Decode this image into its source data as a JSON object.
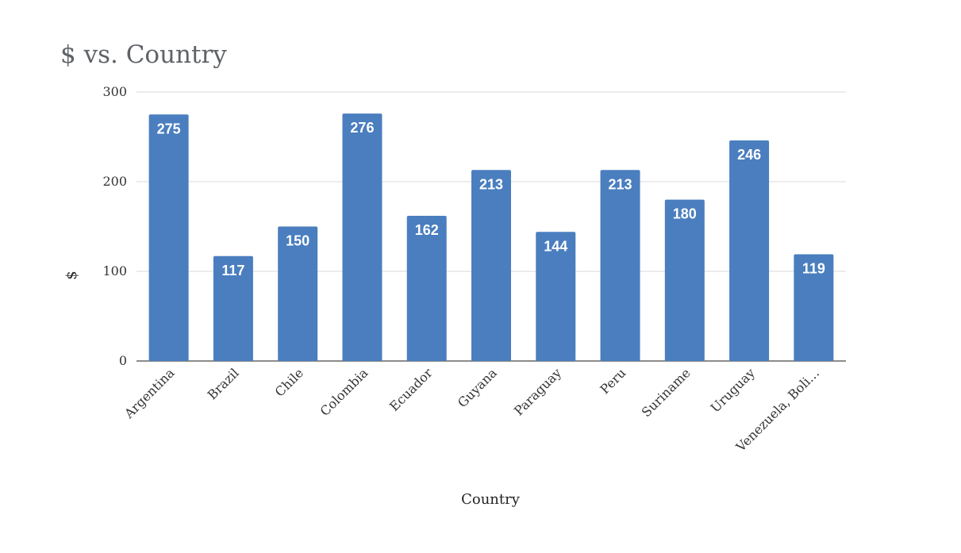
{
  "chart_data": {
    "type": "bar",
    "title": "$ vs. Country",
    "xlabel": "Country",
    "ylabel": "$",
    "categories": [
      "Argentina",
      "Brazil",
      "Chile",
      "Colombia",
      "Ecuador",
      "Guyana",
      "Paraguay",
      "Peru",
      "Suriname",
      "Uruguay",
      "Venezuela, Boli…"
    ],
    "series": [
      {
        "values": [
          275,
          117,
          150,
          276,
          162,
          213,
          144,
          213,
          180,
          246,
          119
        ]
      }
    ],
    "ylim": [
      0,
      300
    ],
    "yticks": [
      0,
      100,
      200,
      300
    ],
    "grid": true,
    "legend": "none",
    "data_labels": "inside-end",
    "colors": {
      "bar": "#4a7ebf",
      "data_label": "#ffffff",
      "title": "#5f6368",
      "gridline": "#e0e0e0"
    }
  }
}
